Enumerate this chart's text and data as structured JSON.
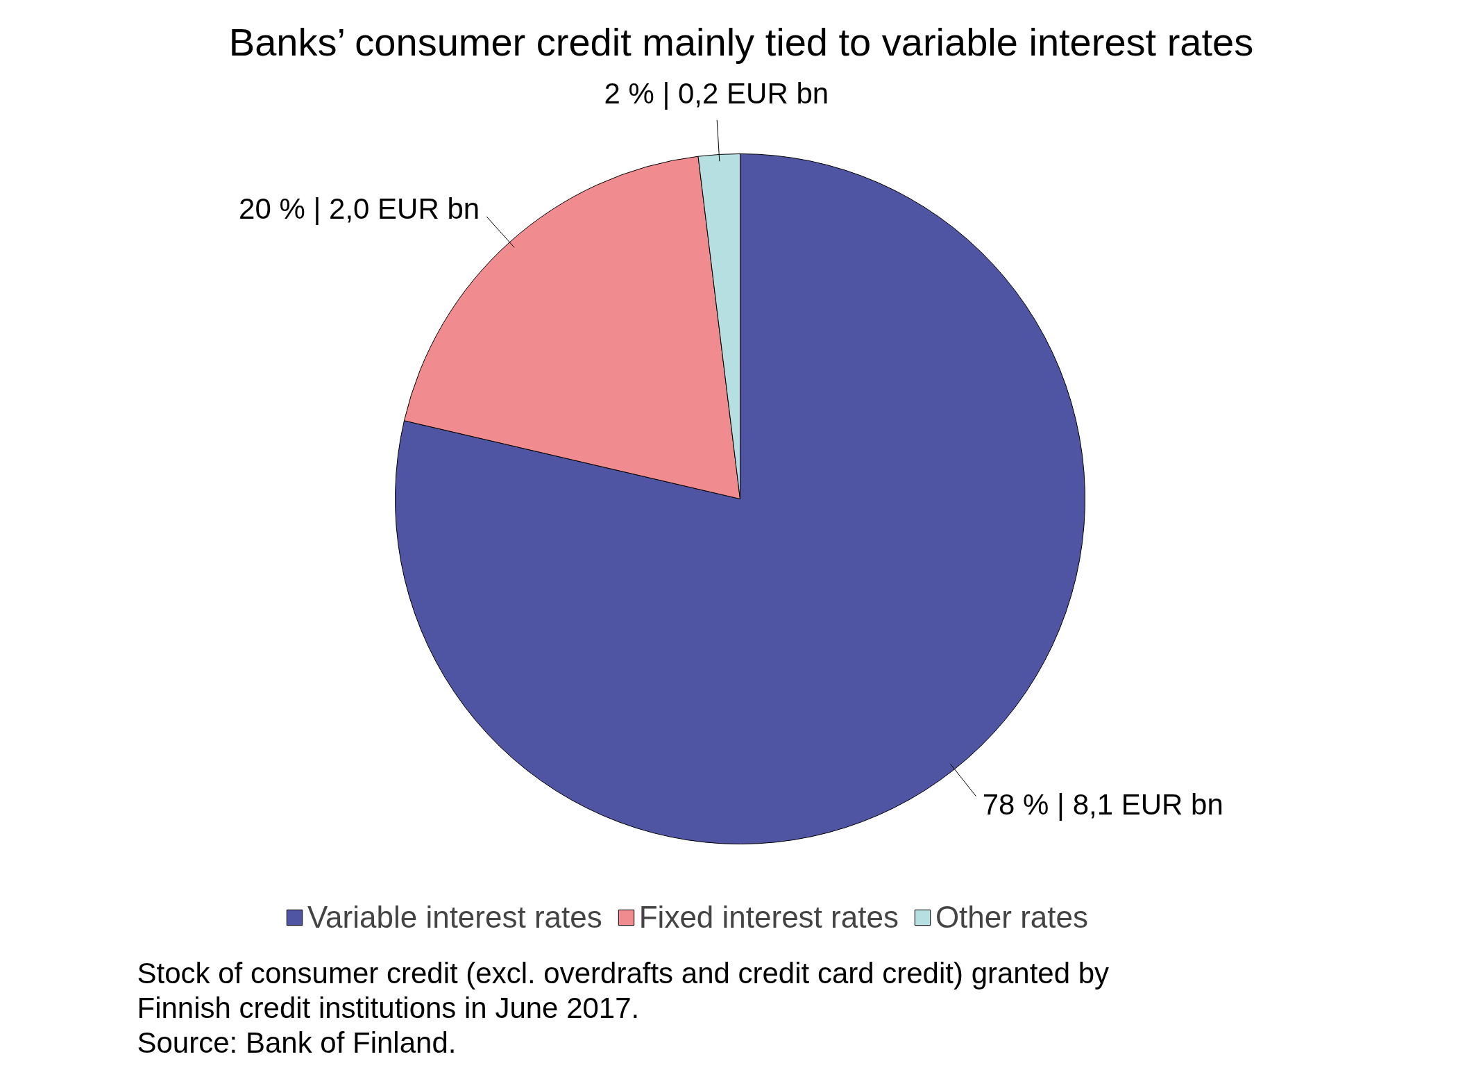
{
  "chart_data": {
    "type": "pie",
    "title": "Banks’ consumer credit mainly tied to variable interest rates",
    "categories": [
      "Variable interest rates",
      "Fixed interest rates",
      "Other rates"
    ],
    "values": [
      8.1,
      2.0,
      0.2
    ],
    "value_labels": [
      "78 % | 8,1 EUR bn",
      "20 % | 2,0 EUR bn",
      "2 % | 0,2 EUR bn"
    ],
    "colors": [
      "#4f55a3",
      "#f08c8f",
      "#b5dfe0"
    ],
    "legend": "bottom",
    "annotations": [
      "Stock of consumer credit (excl. overdrafts and credit card credit) granted by Finnish credit institutions in June 2017.",
      "Source: Bank of Finland."
    ]
  }
}
